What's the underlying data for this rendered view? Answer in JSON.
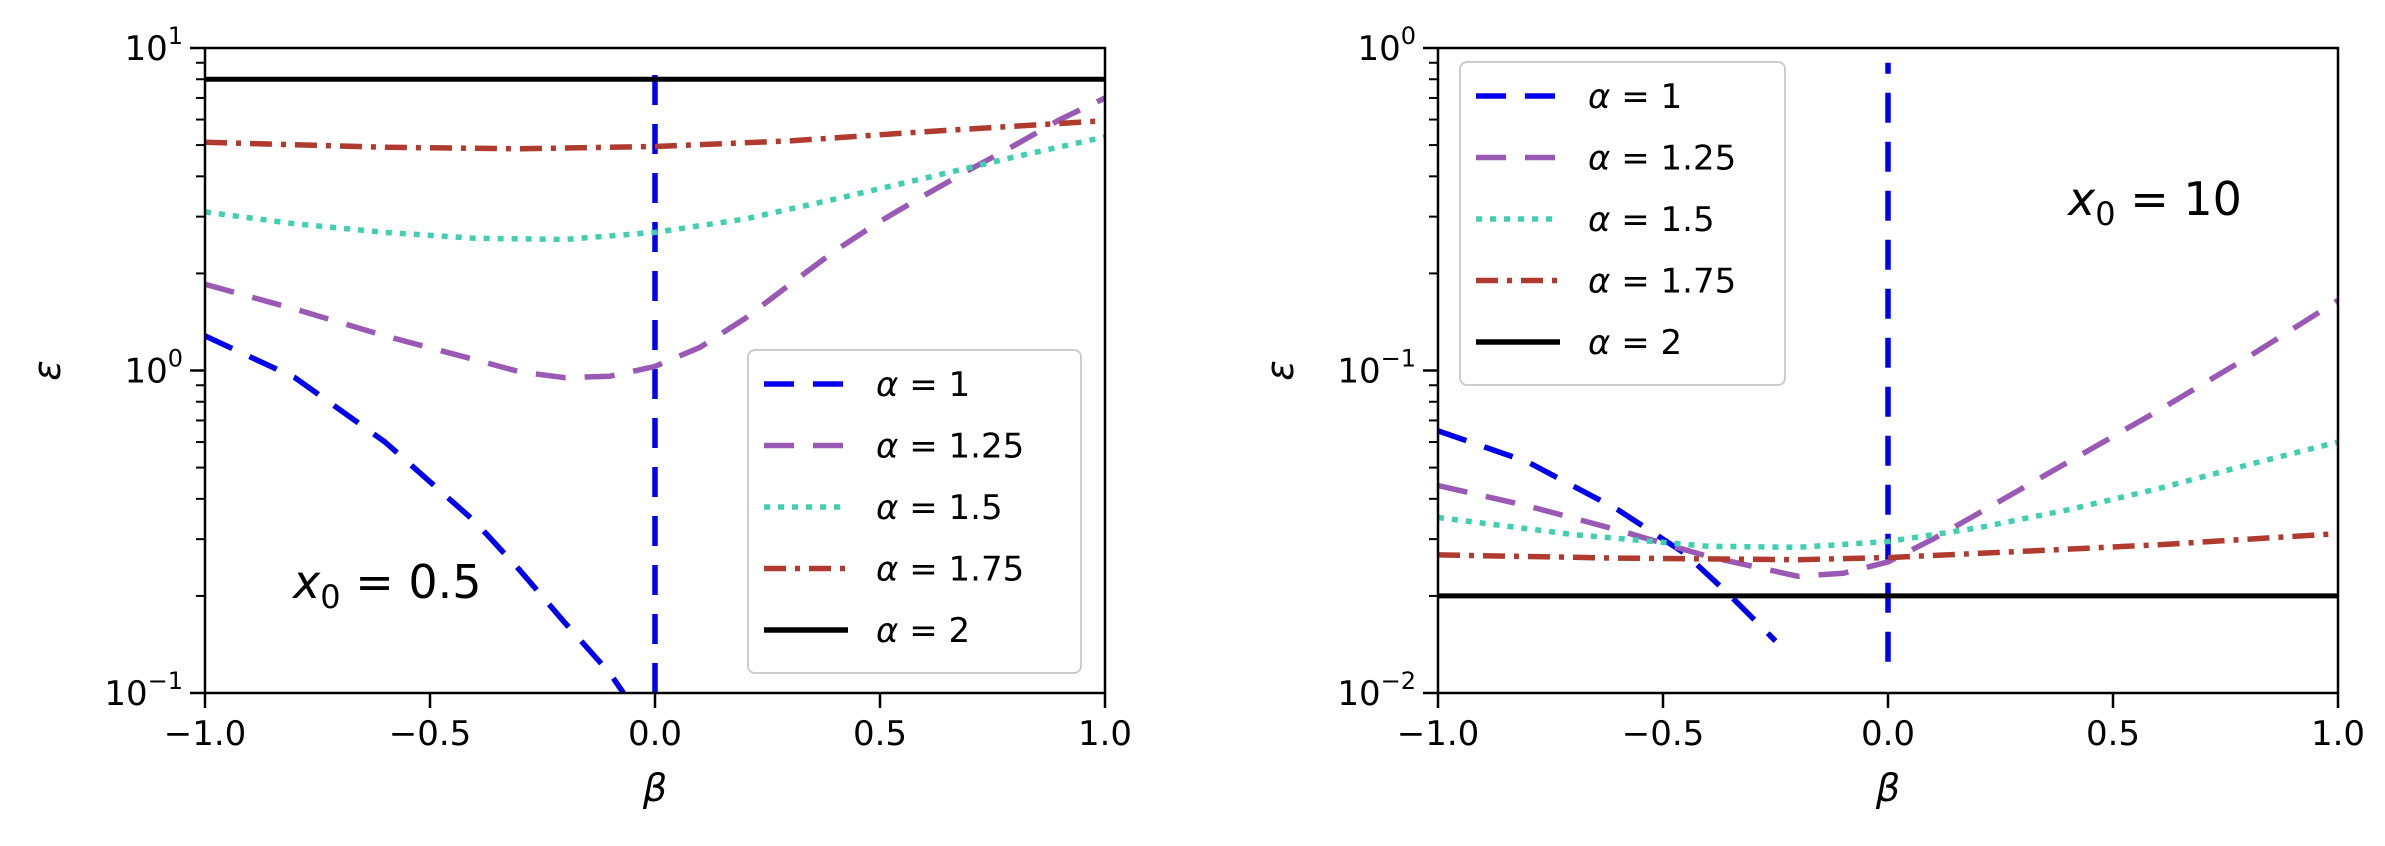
{
  "chart_data": [
    {
      "type": "line",
      "yscale": "log",
      "xlabel": "β",
      "ylabel": "ε",
      "xlim": [
        -1.0,
        1.0
      ],
      "ylim": [
        0.1,
        10
      ],
      "x_ticks": [
        "−1.0",
        "−0.5",
        "0.0",
        "0.5",
        "1.0"
      ],
      "x_tick_values": [
        -1.0,
        -0.5,
        0.0,
        0.5,
        1.0
      ],
      "y_ticks": [
        {
          "base": "10",
          "exp": "−1",
          "value": 0.1
        },
        {
          "base": "10",
          "exp": "0",
          "value": 1
        },
        {
          "base": "10",
          "exp": "1",
          "value": 10
        }
      ],
      "annotation": {
        "label": "x",
        "sub": "0",
        "rest": " = 0.5"
      },
      "legend": {
        "position": "lower-right"
      },
      "series": [
        {
          "name": "α = 1",
          "var": "α",
          "eq": " = 1",
          "color": "#0000ee",
          "style": "dashed",
          "points": [
            [
              -1.0,
              1.28
            ],
            [
              -0.8,
              0.95
            ],
            [
              -0.6,
              0.6
            ],
            [
              -0.4,
              0.34
            ],
            [
              -0.3,
              0.24
            ],
            [
              -0.2,
              0.165
            ],
            [
              -0.1,
              0.115
            ],
            [
              -0.07,
              0.1
            ]
          ],
          "vertical": {
            "x": 0.0,
            "y_from": 0.1,
            "y_to": 9.0
          }
        },
        {
          "name": "α = 1.25",
          "var": "α",
          "eq": " = 1.25",
          "color": "#9b59b6",
          "style": "dashed",
          "points": [
            [
              -1.0,
              1.85
            ],
            [
              -0.8,
              1.55
            ],
            [
              -0.6,
              1.28
            ],
            [
              -0.4,
              1.08
            ],
            [
              -0.3,
              0.99
            ],
            [
              -0.2,
              0.95
            ],
            [
              -0.1,
              0.96
            ],
            [
              0.0,
              1.03
            ],
            [
              0.1,
              1.18
            ],
            [
              0.2,
              1.45
            ],
            [
              0.3,
              1.85
            ],
            [
              0.4,
              2.35
            ],
            [
              0.5,
              2.9
            ],
            [
              0.6,
              3.5
            ],
            [
              0.7,
              4.2
            ],
            [
              0.8,
              5.0
            ],
            [
              0.9,
              6.0
            ],
            [
              1.0,
              7.0
            ]
          ]
        },
        {
          "name": "α = 1.5",
          "var": "α",
          "eq": " = 1.5",
          "color": "#3ed0b0",
          "style": "dotted",
          "points": [
            [
              -1.0,
              3.1
            ],
            [
              -0.8,
              2.85
            ],
            [
              -0.6,
              2.68
            ],
            [
              -0.4,
              2.57
            ],
            [
              -0.2,
              2.55
            ],
            [
              0.0,
              2.68
            ],
            [
              0.2,
              2.95
            ],
            [
              0.4,
              3.4
            ],
            [
              0.6,
              3.95
            ],
            [
              0.8,
              4.6
            ],
            [
              1.0,
              5.3
            ]
          ]
        },
        {
          "name": "α = 1.75",
          "var": "α",
          "eq": " = 1.75",
          "color": "#b03a2e",
          "style": "dashdot",
          "points": [
            [
              -1.0,
              5.1
            ],
            [
              -0.6,
              4.92
            ],
            [
              -0.3,
              4.87
            ],
            [
              0.0,
              4.95
            ],
            [
              0.3,
              5.15
            ],
            [
              0.6,
              5.5
            ],
            [
              1.0,
              5.95
            ]
          ]
        },
        {
          "name": "α = 2",
          "var": "α",
          "eq": " = 2",
          "color": "#000000",
          "style": "solid",
          "points": [
            [
              -1.0,
              8.0
            ],
            [
              1.0,
              8.0
            ]
          ]
        }
      ]
    },
    {
      "type": "line",
      "yscale": "log",
      "xlabel": "β",
      "ylabel": "ε",
      "xlim": [
        -1.0,
        1.0
      ],
      "ylim": [
        0.01,
        1
      ],
      "x_ticks": [
        "−1.0",
        "−0.5",
        "0.0",
        "0.5",
        "1.0"
      ],
      "x_tick_values": [
        -1.0,
        -0.5,
        0.0,
        0.5,
        1.0
      ],
      "y_ticks": [
        {
          "base": "10",
          "exp": "−2",
          "value": 0.01
        },
        {
          "base": "10",
          "exp": "−1",
          "value": 0.1
        },
        {
          "base": "10",
          "exp": "0",
          "value": 1
        }
      ],
      "annotation": {
        "label": "x",
        "sub": "0",
        "rest": " = 10"
      },
      "legend": {
        "position": "upper-left"
      },
      "series": [
        {
          "name": "α = 1",
          "var": "α",
          "eq": " = 1",
          "color": "#0000ee",
          "style": "dashed",
          "points": [
            [
              -1.0,
              0.065
            ],
            [
              -0.8,
              0.052
            ],
            [
              -0.6,
              0.037
            ],
            [
              -0.45,
              0.027
            ],
            [
              -0.35,
              0.02
            ],
            [
              -0.25,
              0.0145
            ]
          ],
          "vertical": {
            "x": 0.0,
            "y_from": 0.0125,
            "y_to": 0.9
          }
        },
        {
          "name": "α = 1.25",
          "var": "α",
          "eq": " = 1.25",
          "color": "#9b59b6",
          "style": "dashed",
          "points": [
            [
              -1.0,
              0.044
            ],
            [
              -0.8,
              0.038
            ],
            [
              -0.6,
              0.032
            ],
            [
              -0.4,
              0.0265
            ],
            [
              -0.2,
              0.023
            ],
            [
              -0.1,
              0.0235
            ],
            [
              0.0,
              0.0255
            ],
            [
              0.1,
              0.03
            ],
            [
              0.2,
              0.036
            ],
            [
              0.4,
              0.052
            ],
            [
              0.6,
              0.075
            ],
            [
              0.8,
              0.11
            ],
            [
              1.0,
              0.165
            ]
          ]
        },
        {
          "name": "α = 1.5",
          "var": "α",
          "eq": " = 1.5",
          "color": "#3ed0b0",
          "style": "dotted",
          "points": [
            [
              -1.0,
              0.035
            ],
            [
              -0.7,
              0.031
            ],
            [
              -0.4,
              0.0285
            ],
            [
              -0.2,
              0.0283
            ],
            [
              0.0,
              0.0295
            ],
            [
              0.2,
              0.0325
            ],
            [
              0.4,
              0.037
            ],
            [
              0.6,
              0.043
            ],
            [
              0.8,
              0.051
            ],
            [
              1.0,
              0.06
            ]
          ]
        },
        {
          "name": "α = 1.75",
          "var": "α",
          "eq": " = 1.75",
          "color": "#b03a2e",
          "style": "dashdot",
          "points": [
            [
              -1.0,
              0.0268
            ],
            [
              -0.6,
              0.0262
            ],
            [
              -0.2,
              0.0259
            ],
            [
              0.0,
              0.0263
            ],
            [
              0.3,
              0.0275
            ],
            [
              0.6,
              0.0288
            ],
            [
              1.0,
              0.0312
            ]
          ]
        },
        {
          "name": "α = 2",
          "var": "α",
          "eq": " = 2",
          "color": "#000000",
          "style": "solid",
          "points": [
            [
              -1.0,
              0.02
            ],
            [
              1.0,
              0.02
            ]
          ]
        }
      ]
    }
  ]
}
